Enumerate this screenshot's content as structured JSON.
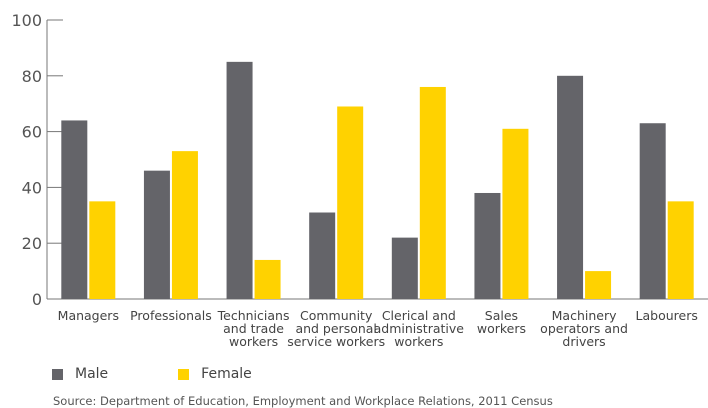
{
  "chart_data": {
    "type": "bar",
    "categories": [
      [
        "Managers"
      ],
      [
        "Professionals"
      ],
      [
        "Technicians",
        "and trade",
        "workers"
      ],
      [
        "Community",
        "and personal",
        "service workers"
      ],
      [
        "Clerical and",
        "administrative",
        "workers"
      ],
      [
        "Sales",
        "workers"
      ],
      [
        "Machinery",
        "operators and",
        "drivers"
      ],
      [
        "Labourers"
      ]
    ],
    "series": [
      {
        "name": "Male",
        "color": "#646469",
        "values": [
          64,
          46,
          85,
          31,
          22,
          38,
          80,
          63
        ]
      },
      {
        "name": "Female",
        "color": "#FFD200",
        "values": [
          35,
          53,
          14,
          69,
          76,
          61,
          10,
          35
        ]
      }
    ],
    "yticks": [
      0,
      20,
      40,
      60,
      80,
      100
    ],
    "ylim": [
      0,
      100
    ],
    "title": "",
    "xlabel": "",
    "ylabel": "",
    "legend_placement": "bottom-left",
    "grid": false
  },
  "legend": {
    "male_label": "Male",
    "female_label": "Female"
  },
  "source": "Source: Department of Education, Employment and Workplace Relations, 2011 Census"
}
